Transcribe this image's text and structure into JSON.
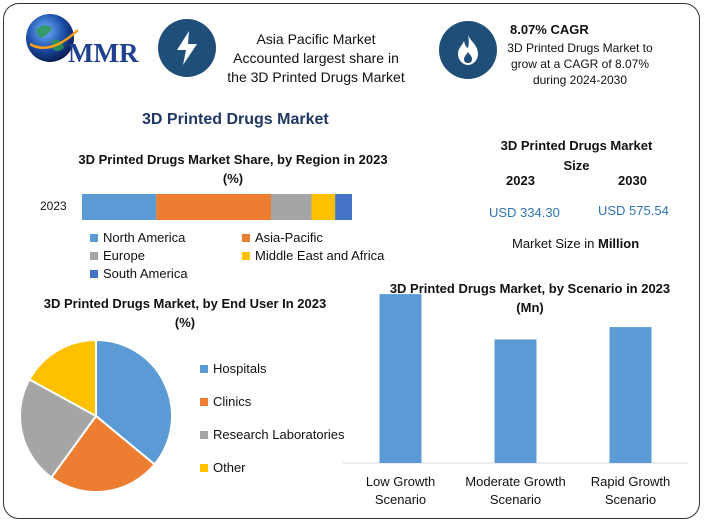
{
  "logo": {
    "text": "MMR"
  },
  "highlight_1": {
    "text": "Asia Pacific Market Accounted largest share in the 3D Printed Drugs Market"
  },
  "highlight_2": {
    "title": "8.07% CAGR",
    "text": "3D Printed Drugs Market to grow at a CAGR of 8.07% during 2024-2030"
  },
  "main_title": "3D Printed Drugs Market",
  "colors": {
    "blue": "#5b9bd5",
    "orange": "#ed7d31",
    "gray": "#a5a5a5",
    "yellow": "#ffc000",
    "darkblue": "#4472c4",
    "brand": "#1f4e79",
    "value_text": "#2e75b6"
  },
  "market_size": {
    "title": "3D Printed Drugs Market Size",
    "years": [
      "2023",
      "2030"
    ],
    "values": [
      "USD 334.30",
      "USD 575.54"
    ],
    "unit_prefix": "Market Size in ",
    "unit": "Million"
  },
  "chart_data": [
    {
      "type": "bar",
      "orientation": "horizontal-stacked",
      "title": "3D Printed Drugs Market Share, by Region in 2023 (%)",
      "categories": [
        "2023"
      ],
      "series": [
        {
          "name": "North America",
          "values": [
            22
          ],
          "color": "#5b9bd5"
        },
        {
          "name": "Asia-Pacific",
          "values": [
            34
          ],
          "color": "#ed7d31"
        },
        {
          "name": "Europe",
          "values": [
            12
          ],
          "color": "#a5a5a5"
        },
        {
          "name": "Middle East and Africa",
          "values": [
            7
          ],
          "color": "#ffc000"
        },
        {
          "name": "South America",
          "values": [
            5
          ],
          "color": "#4472c4"
        }
      ],
      "grid": false,
      "legend": "bottom"
    },
    {
      "type": "pie",
      "title": "3D Printed Drugs Market, by End User In 2023 (%)",
      "labels": [
        "Hospitals",
        "Clinics",
        "Research Laboratories",
        "Other"
      ],
      "values": [
        36,
        24,
        23,
        17
      ],
      "colors": [
        "#5b9bd5",
        "#ed7d31",
        "#a5a5a5",
        "#ffc000"
      ],
      "legend": "right"
    },
    {
      "type": "bar",
      "title": "3D Printed Drugs Market, by Scenario in 2023 (Mn)",
      "categories": [
        "Low Growth Scenario",
        "Moderate Growth Scenario",
        "Rapid Growth Scenario"
      ],
      "values": [
        410,
        300,
        330
      ],
      "ylim": [
        0,
        420
      ],
      "color": "#5b9bd5",
      "grid": false
    }
  ]
}
